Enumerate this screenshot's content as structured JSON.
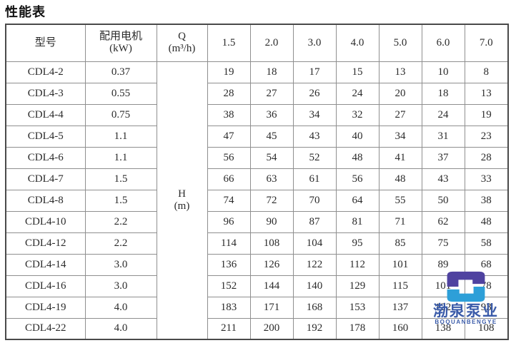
{
  "page_title": "性能表",
  "table": {
    "headers": {
      "model": "型号",
      "motor_line1": "配用电机",
      "motor_line2": "(kW)",
      "q_line1": "Q",
      "q_line2": "(m³/h)",
      "flow_values": [
        "1.5",
        "2.0",
        "3.0",
        "4.0",
        "5.0",
        "6.0",
        "7.0"
      ]
    },
    "head_cell": {
      "line1": "H",
      "line2": "(m)"
    },
    "rows": [
      {
        "model": "CDL4-2",
        "power": "0.37",
        "heads": [
          "19",
          "18",
          "17",
          "15",
          "13",
          "10",
          "8"
        ]
      },
      {
        "model": "CDL4-3",
        "power": "0.55",
        "heads": [
          "28",
          "27",
          "26",
          "24",
          "20",
          "18",
          "13"
        ]
      },
      {
        "model": "CDL4-4",
        "power": "0.75",
        "heads": [
          "38",
          "36",
          "34",
          "32",
          "27",
          "24",
          "19"
        ]
      },
      {
        "model": "CDL4-5",
        "power": "1.1",
        "heads": [
          "47",
          "45",
          "43",
          "40",
          "34",
          "31",
          "23"
        ]
      },
      {
        "model": "CDL4-6",
        "power": "1.1",
        "heads": [
          "56",
          "54",
          "52",
          "48",
          "41",
          "37",
          "28"
        ]
      },
      {
        "model": "CDL4-7",
        "power": "1.5",
        "heads": [
          "66",
          "63",
          "61",
          "56",
          "48",
          "43",
          "33"
        ]
      },
      {
        "model": "CDL4-8",
        "power": "1.5",
        "heads": [
          "74",
          "72",
          "70",
          "64",
          "55",
          "50",
          "38"
        ]
      },
      {
        "model": "CDL4-10",
        "power": "2.2",
        "heads": [
          "96",
          "90",
          "87",
          "81",
          "71",
          "62",
          "48"
        ]
      },
      {
        "model": "CDL4-12",
        "power": "2.2",
        "heads": [
          "114",
          "108",
          "104",
          "95",
          "85",
          "75",
          "58"
        ]
      },
      {
        "model": "CDL4-14",
        "power": "3.0",
        "heads": [
          "136",
          "126",
          "122",
          "112",
          "101",
          "89",
          "68"
        ]
      },
      {
        "model": "CDL4-16",
        "power": "3.0",
        "heads": [
          "152",
          "144",
          "140",
          "129",
          "115",
          "101",
          "78"
        ]
      },
      {
        "model": "CDL4-19",
        "power": "4.0",
        "heads": [
          "183",
          "171",
          "168",
          "153",
          "137",
          "122",
          "93"
        ]
      },
      {
        "model": "CDL4-22",
        "power": "4.0",
        "heads": [
          "211",
          "200",
          "192",
          "178",
          "160",
          "138",
          "108"
        ]
      }
    ]
  },
  "watermark": {
    "brand_cn": "渤泉泵业",
    "brand_en": "BOQUANBENGYE",
    "logo_purple": "#4F42A0",
    "logo_blue": "#2D9FD8",
    "text_blue": "#3A5BA9"
  }
}
